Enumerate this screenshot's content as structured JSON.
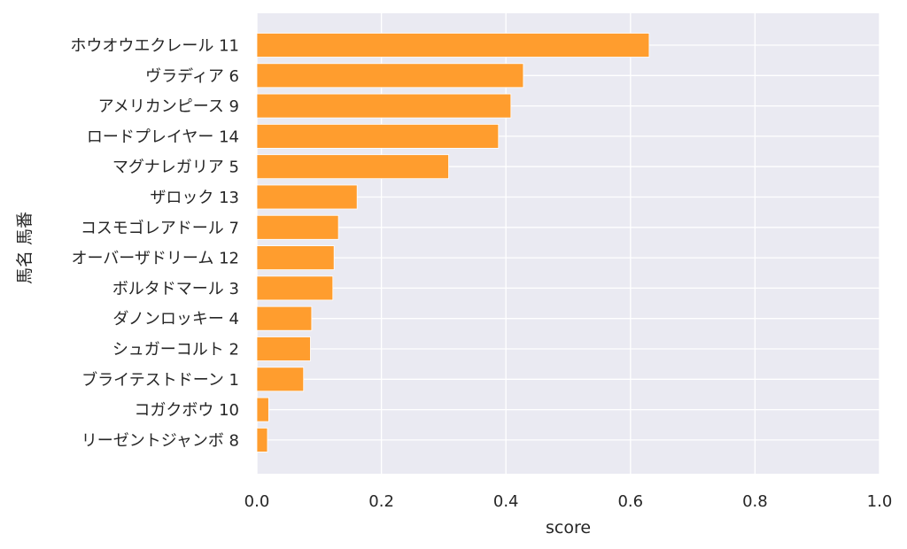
{
  "chart_data": {
    "type": "bar",
    "orientation": "horizontal",
    "categories": [
      "ホウオウエクレール 11",
      "ヴラディア 6",
      "アメリカンピース 9",
      "ロードプレイヤー 14",
      "マグナレガリア 5",
      "ザロック 13",
      "コスモゴレアドール 7",
      "オーバーザドリーム 12",
      "ボルタドマール 3",
      "ダノンロッキー 4",
      "シュガーコルト 2",
      "ブライテストドーン 1",
      "コガクボウ 10",
      "リーゼントジャンボ 8"
    ],
    "values": [
      0.63,
      0.428,
      0.408,
      0.388,
      0.308,
      0.161,
      0.131,
      0.124,
      0.122,
      0.088,
      0.086,
      0.075,
      0.019,
      0.017
    ],
    "xlabel": "score",
    "ylabel": "馬名 馬番",
    "xlim": [
      0,
      1.0
    ],
    "xticks": [
      0.0,
      0.2,
      0.4,
      0.6,
      0.8,
      1.0
    ],
    "xtick_labels": [
      "0.0",
      "0.2",
      "0.4",
      "0.6",
      "0.8",
      "1.0"
    ],
    "grid": true,
    "bar_color": "#ff9d2e",
    "background_color": "#eaeaf2"
  }
}
